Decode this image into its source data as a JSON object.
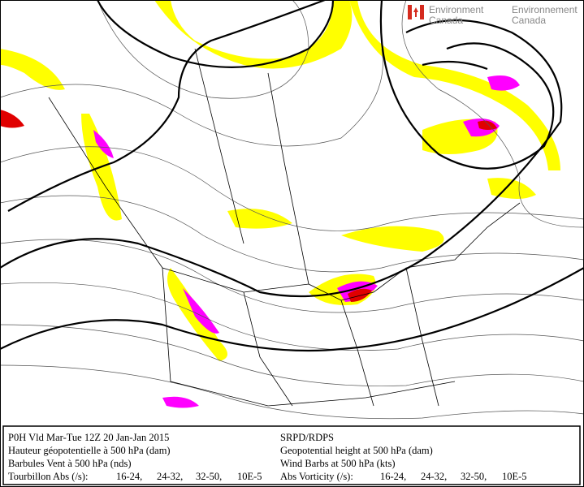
{
  "logo": {
    "english": [
      "Environment",
      "Canada"
    ],
    "french": [
      "Environnement",
      "Canada"
    ]
  },
  "legend": {
    "left": {
      "lines": [
        "P0H Vld Mar-Tue 12Z 20 Jan-Jan 2015",
        "Hauteur géopotentielle à 500 hPa (dam)",
        "Barbules Vent à 500 hPa (nds)"
      ],
      "label": "Tourbillon Abs (/s):",
      "ranges": [
        "16-24,",
        "24-32,",
        "32-50,"
      ],
      "units": "10E-5"
    },
    "right": {
      "lines": [
        "SRPD/RDPS",
        "Geopotential height at 500 hPa (dam)",
        "Wind Barbs at 500 hPa (kts)"
      ],
      "label": "Abs Vorticity (/s):",
      "ranges": [
        "16-24,",
        "24-32,",
        "32-50,"
      ],
      "units": "10E-5"
    },
    "range_colors": [
      "#a08c00",
      "#ff00ff",
      "#e00000"
    ]
  }
}
